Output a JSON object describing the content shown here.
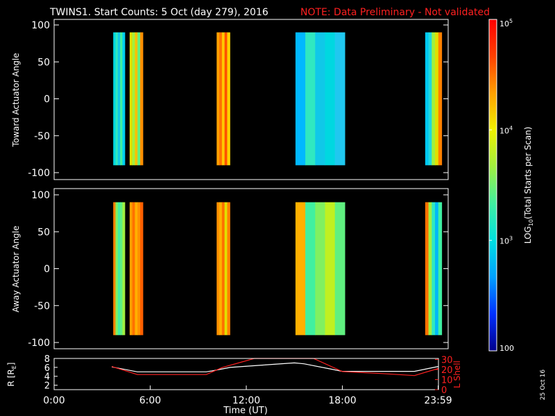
{
  "header": {
    "title": "TWINS1. Start Counts:  5 Oct (day 279), 2016",
    "note": "NOTE: Data Preliminary - Not validated"
  },
  "colors": {
    "background": "#000000",
    "note": "#ff2020",
    "l_shell_line": "#ff2020",
    "r_line": "#ffffff"
  },
  "stamp": "25 Oct 16",
  "colorbar": {
    "label": "LOG10(Total Starts per Scan)",
    "label_prefix": "LOG",
    "label_sub": "10",
    "label_suffix": "(Total Starts per Scan)",
    "scale": "log",
    "range": [
      100,
      100000
    ],
    "ticks": [
      {
        "value": 100000,
        "base": "10",
        "exp": "5"
      },
      {
        "value": 10000,
        "base": "10",
        "exp": "4"
      },
      {
        "value": 1000,
        "base": "10",
        "exp": "3"
      },
      {
        "value": 100,
        "base": "100",
        "exp": ""
      }
    ],
    "colormap": [
      "#00008c",
      "#0030ff",
      "#00a0ff",
      "#00e0e0",
      "#40f0a0",
      "#a0f040",
      "#f0f000",
      "#ffa000",
      "#ff4000",
      "#ff0000"
    ]
  },
  "chart_data": [
    {
      "type": "heatmap",
      "panel": "toward",
      "ylabel": "Toward Actuator Angle",
      "ylim": [
        -100,
        100
      ],
      "yticks": [
        "100",
        "50",
        "0",
        "-50",
        "-100"
      ],
      "xlim": [
        0,
        24
      ],
      "segments": [
        {
          "start": 3.6,
          "end": 4.3,
          "colors": [
            "#00d8e0",
            "#30e8c0",
            "#10c8e8",
            "#40f0a0",
            "#00d0f0"
          ]
        },
        {
          "start": 4.6,
          "end": 5.4,
          "colors": [
            "#e0e000",
            "#a0f040",
            "#ffc000",
            "#60f080",
            "#ff9000"
          ]
        },
        {
          "start": 9.9,
          "end": 10.7,
          "colors": [
            "#ffa000",
            "#ff7000",
            "#ffc800",
            "#ff5000",
            "#ffd000"
          ]
        },
        {
          "start": 14.7,
          "end": 17.7,
          "colors": [
            "#00b8ff",
            "#30e8c0",
            "#10c8e8",
            "#00d8e0",
            "#20c8f0"
          ]
        },
        {
          "start": 22.6,
          "end": 23.6,
          "colors": [
            "#00c8f0",
            "#20d8e0",
            "#a0f040",
            "#e0e000",
            "#ff8000"
          ]
        }
      ]
    },
    {
      "type": "heatmap",
      "panel": "away",
      "ylabel": "Away Actuator Angle",
      "ylim": [
        -100,
        100
      ],
      "yticks": [
        "100",
        "50",
        "0",
        "-50",
        "-100"
      ],
      "xlim": [
        0,
        24
      ],
      "segments": [
        {
          "start": 3.6,
          "end": 4.3,
          "colors": [
            "#ff8000",
            "#80f060",
            "#40f0a0",
            "#60f080",
            "#a0f040"
          ]
        },
        {
          "start": 4.6,
          "end": 5.4,
          "colors": [
            "#ffa000",
            "#ff7000",
            "#ffb000",
            "#ff9000",
            "#ff6000"
          ]
        },
        {
          "start": 9.9,
          "end": 10.7,
          "colors": [
            "#ff9000",
            "#ffb000",
            "#ff7000",
            "#e0e000",
            "#ff8000"
          ]
        },
        {
          "start": 14.7,
          "end": 17.7,
          "colors": [
            "#ffb000",
            "#40f0a0",
            "#80f060",
            "#c0f020",
            "#60f080"
          ]
        },
        {
          "start": 22.6,
          "end": 23.6,
          "colors": [
            "#ff7000",
            "#a0f040",
            "#30e8c0",
            "#00b8f8",
            "#40f0a0"
          ]
        }
      ]
    },
    {
      "type": "line",
      "panel": "orbit",
      "xlabel": "Time (UT)",
      "xlim": [
        0,
        24
      ],
      "xticks": [
        {
          "value": 0,
          "label": "0:00"
        },
        {
          "value": 6,
          "label": "6:00"
        },
        {
          "value": 12,
          "label": "12:00"
        },
        {
          "value": 18,
          "label": "18:00"
        },
        {
          "value": 23.98,
          "label": "23:59"
        }
      ],
      "left_axis": {
        "label": "R [RE]",
        "label_prefix": "R [R",
        "label_sub": "E",
        "label_suffix": "]",
        "ylim": [
          1,
          8
        ],
        "ticks": [
          "8",
          "6",
          "4",
          "2"
        ]
      },
      "right_axis": {
        "label": "L Shell",
        "ylim": [
          0,
          31
        ],
        "ticks": [
          "30",
          "20",
          "10",
          "0"
        ]
      },
      "series": [
        {
          "axis": "left",
          "x": [
            3.6,
            5.2,
            9.5,
            10.0,
            11.0,
            13.0,
            15.0,
            15.6,
            17.3,
            18.0,
            20.5,
            22.5,
            23.98
          ],
          "y": [
            6.1,
            5.0,
            5.0,
            5.3,
            6.0,
            6.5,
            7.0,
            6.8,
            5.6,
            5.1,
            5.1,
            5.1,
            6.2
          ]
        },
        {
          "axis": "right",
          "x": [
            3.6,
            5.2,
            9.5,
            10.5,
            12.5,
            13.8,
            16.2,
            18.0,
            20.5,
            22.5,
            23.98
          ],
          "y": [
            23,
            15,
            15,
            22,
            31,
            31,
            31,
            18,
            16,
            14,
            21
          ]
        }
      ]
    }
  ]
}
